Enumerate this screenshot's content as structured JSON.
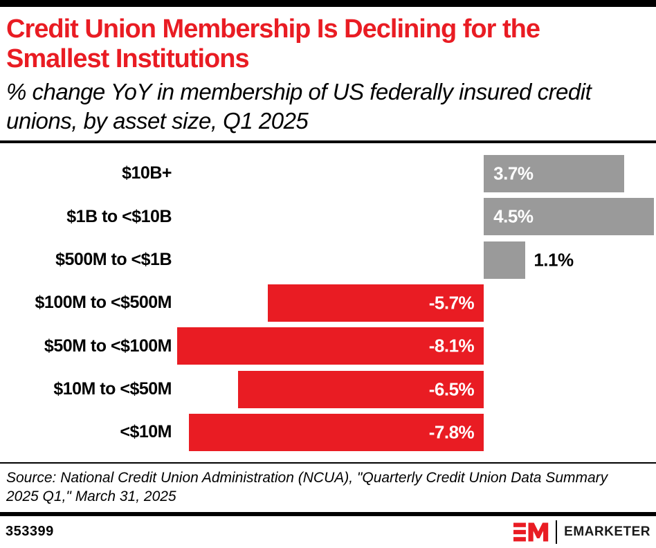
{
  "header": {
    "title": "Credit Union Membership Is Declining for the Smallest Institutions",
    "subtitle": "% change YoY in membership of US federally insured credit unions, by asset size, Q1 2025"
  },
  "chart_data": {
    "type": "bar",
    "orientation": "horizontal",
    "title": "Credit Union Membership Is Declining for the Smallest Institutions",
    "subtitle": "% change YoY in membership of US federally insured credit unions, by asset size, Q1 2025",
    "categories": [
      "$10B+",
      "$1B to <$10B",
      "$500M to <$1B",
      "$100M to <$500M",
      "$50M to <$100M",
      "$10M to <$50M",
      "<$10M"
    ],
    "values": [
      3.7,
      4.5,
      1.1,
      -5.7,
      -8.1,
      -6.5,
      -7.8
    ],
    "value_labels": [
      "3.7%",
      "4.5%",
      "1.1%",
      "-5.7%",
      "-8.1%",
      "-6.5%",
      "-7.8%"
    ],
    "xlabel": "",
    "ylabel": "",
    "xlim": [
      -8.25,
      4.55
    ],
    "grid": false,
    "legend": false,
    "bar_colors": {
      "positive": "#9A9A9A",
      "negative": "#E91C23"
    },
    "value_label_inside_color": "#FFFFFF",
    "value_label_outside_color": "#000000"
  },
  "source": {
    "text": "Source: National Credit Union Administration (NCUA), \"Quarterly Credit Union Data Summary 2025 Q1,\" March 31, 2025"
  },
  "footer": {
    "chart_id": "353399",
    "brand": "EMARKETER"
  },
  "colors": {
    "accent_red": "#E91C23",
    "bar_gray": "#9A9A9A",
    "text_black": "#000000",
    "background": "#FFFFFF"
  }
}
